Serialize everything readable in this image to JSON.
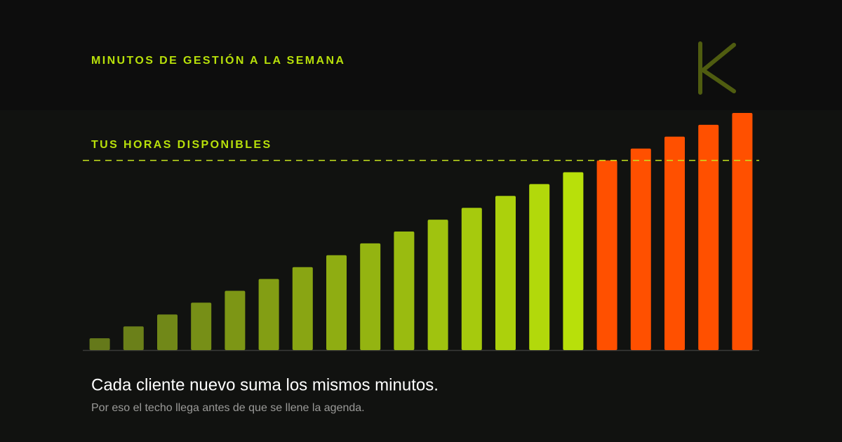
{
  "chart_data": {
    "type": "bar",
    "header": "MINUTOS DE GESTIÓN A LA SEMANA",
    "title": "Cada cliente nuevo suma los mismos minutos.",
    "subtitle": "Por eso el techo llega antes de que se llene la agenda.",
    "categories": [
      null,
      null,
      null,
      null,
      null,
      null,
      null,
      null,
      null,
      null,
      null,
      null,
      null,
      null,
      null,
      null,
      null,
      null,
      null,
      null
    ],
    "values": [
      1,
      2,
      3,
      4,
      5,
      6,
      7,
      8,
      9,
      10,
      11,
      12,
      13,
      14,
      15,
      16,
      17,
      18,
      19,
      20
    ],
    "ylim": [
      0,
      20
    ],
    "threshold": {
      "label": "TUS HORAS DISPONIBLES",
      "value": 16,
      "color": "#c8e61e"
    },
    "color_low": "#65791a",
    "color_high": "#b8e00a",
    "over_color": "#ff5000"
  }
}
